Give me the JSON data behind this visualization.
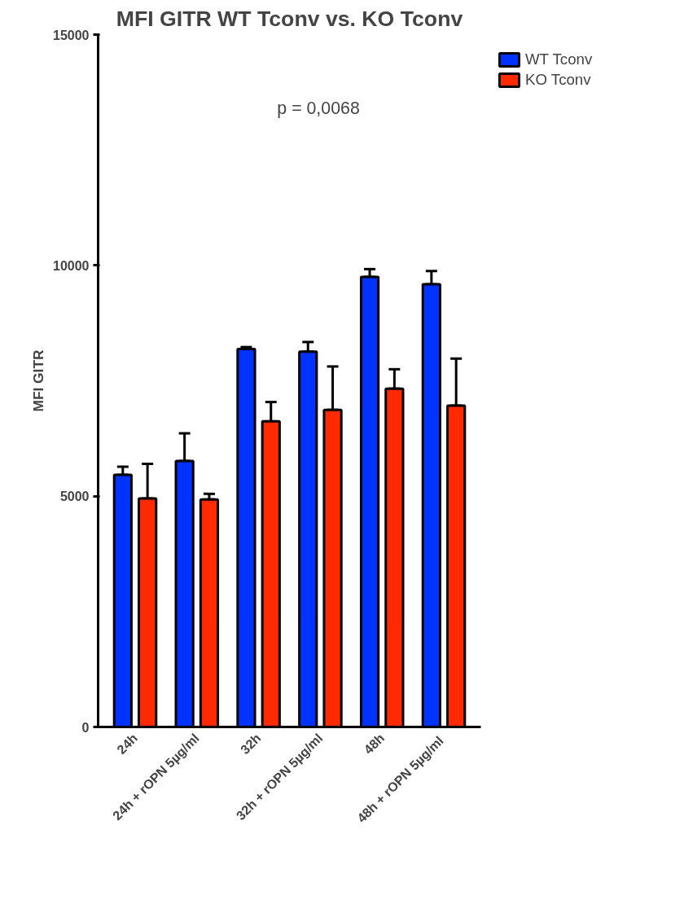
{
  "chart_data": {
    "type": "bar",
    "title": "MFI GITR WT Tconv vs. KO Tconv",
    "ylabel": "MFI GITR",
    "categories": [
      "24h",
      "24h + rOPN 5µg/ml",
      "32h",
      "32h + rOPN 5µg/ml",
      "48h",
      "48h  + rOPN 5µg/ml"
    ],
    "series": [
      {
        "name": "WT Tconv",
        "color": "#0033ff",
        "values": [
          5460,
          5760,
          8190,
          8130,
          9750,
          9590
        ],
        "errors": [
          [
            5460,
            5640
          ],
          [
            5760,
            6360
          ],
          [
            8190,
            8230
          ],
          [
            8130,
            8340
          ],
          [
            9750,
            9920
          ],
          [
            9590,
            9880
          ]
        ]
      },
      {
        "name": "KO Tconv",
        "color": "#ff2a00",
        "values": [
          4950,
          4930,
          6620,
          6870,
          7330,
          6960
        ],
        "errors": [
          [
            4950,
            5700
          ],
          [
            4930,
            5050
          ],
          [
            6620,
            7040
          ],
          [
            6870,
            7810
          ],
          [
            7330,
            7750
          ],
          [
            6960,
            7980
          ]
        ]
      }
    ],
    "ylim": [
      0,
      15000
    ],
    "yticks": [
      0,
      5000,
      10000,
      15000
    ],
    "grid": false,
    "legend": "right",
    "annotations": [
      "p = 0,0068"
    ]
  }
}
